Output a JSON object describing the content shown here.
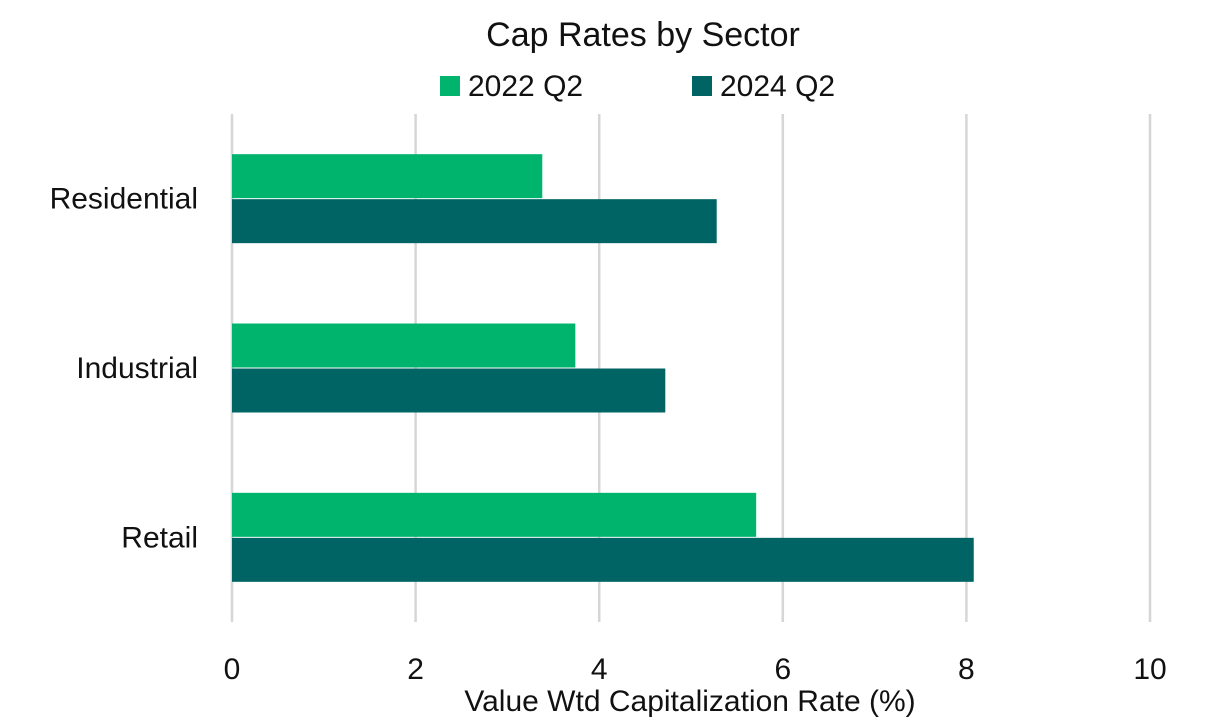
{
  "chart_data": {
    "type": "bar",
    "orientation": "horizontal",
    "title": "Cap Rates by Sector",
    "xlabel": "Value Wtd Capitalization Rate (%)",
    "ylabel": "",
    "categories": [
      "Residential",
      "Industrial",
      "Retail"
    ],
    "series": [
      {
        "name": "2022 Q2",
        "values": [
          3.38,
          3.74,
          5.71
        ],
        "color": "#00b46e"
      },
      {
        "name": "2024 Q2",
        "values": [
          5.28,
          4.72,
          8.08
        ],
        "color": "#006464"
      }
    ],
    "xlim": [
      0,
      10
    ],
    "xticks": [
      "0",
      "2",
      "4",
      "6",
      "8",
      "10"
    ],
    "grid": "vertical",
    "legend": "top-center"
  }
}
